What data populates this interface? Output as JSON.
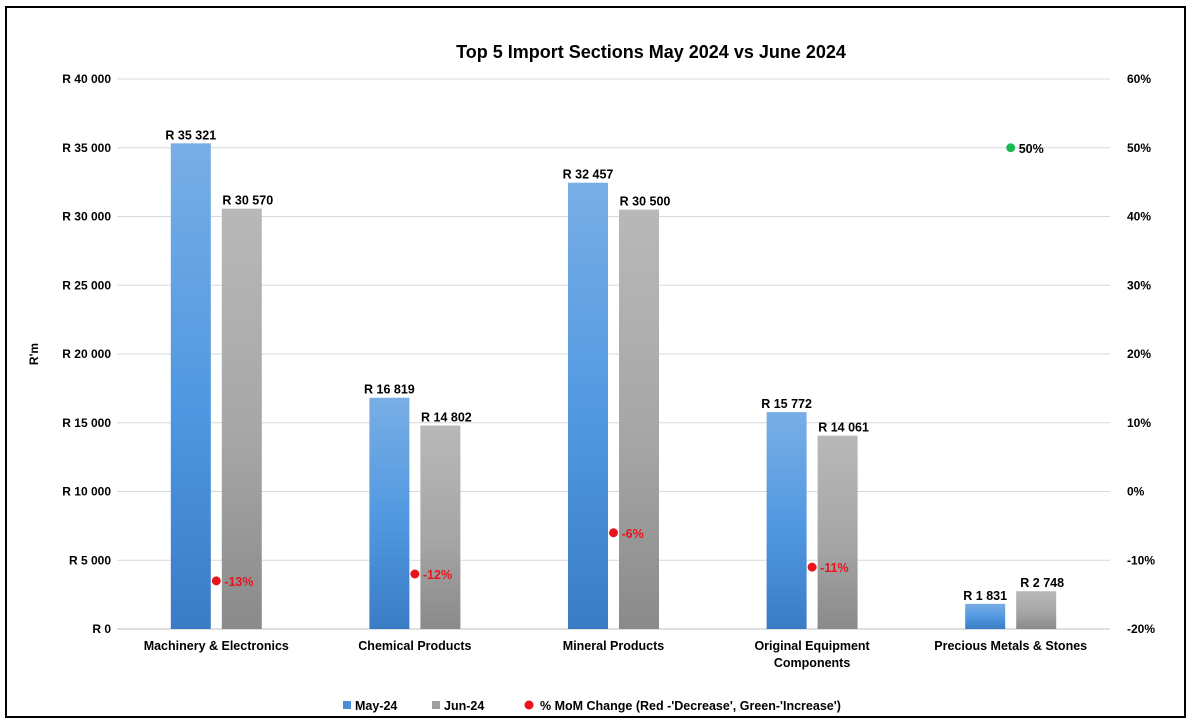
{
  "chart_data": {
    "type": "bar",
    "title": "Top 5 Import Sections  May 2024 vs June 2024",
    "ylabel": "R'm",
    "ylim": [
      0,
      40000
    ],
    "y_ticks": [
      "R 0",
      "R 5 000",
      "R 10 000",
      "R 15 000",
      "R 20 000",
      "R 25 000",
      "R 30 000",
      "R 35 000",
      "R 40 000"
    ],
    "y2lim": [
      -20,
      60
    ],
    "y2_ticks": [
      "-20%",
      "-10%",
      "0%",
      "10%",
      "20%",
      "30%",
      "40%",
      "50%",
      "60%"
    ],
    "grid": true,
    "legend_position": "bottom",
    "categories": [
      [
        "Machinery & Electronics"
      ],
      [
        "Chemical Products"
      ],
      [
        "Mineral Products"
      ],
      [
        "Original Equipment",
        "Components"
      ],
      [
        "Precious Metals & Stones"
      ]
    ],
    "series": [
      {
        "name": "May-24",
        "color": "#4A8FD6",
        "values": [
          35321,
          16819,
          32457,
          15772,
          1831
        ],
        "labels": [
          "R 35 321",
          "R 16 819",
          "R 32 457",
          "R 15 772",
          "R 1 831"
        ]
      },
      {
        "name": "Jun-24",
        "color": "#A0A0A0",
        "values": [
          30570,
          14802,
          30500,
          14061,
          2748
        ],
        "labels": [
          "R 30 570",
          "R 14 802",
          "R 30 500",
          "R 14 061",
          "R 2 748"
        ]
      }
    ],
    "pct_series": {
      "name": "% MoM Change (Red -'Decrease', Green-'Increase')",
      "axis": "secondary",
      "values": [
        -13,
        -12,
        -6,
        -11,
        50
      ],
      "labels": [
        "-13%",
        "-12%",
        "-6%",
        "-11%",
        "50%"
      ],
      "decrease_color": "#E8141C",
      "increase_color": "#1DB954"
    }
  }
}
